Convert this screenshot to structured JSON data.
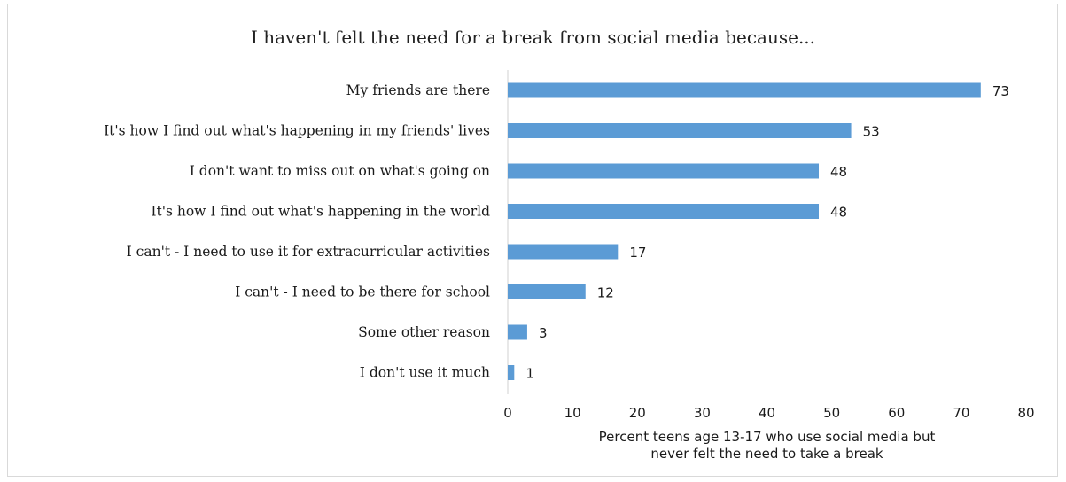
{
  "chart_data": {
    "type": "bar",
    "orientation": "horizontal",
    "title": "I haven't felt the need for a break from social media because...",
    "categories": [
      "My friends are there",
      "It's how I find out what's happening in my friends' lives",
      "I don't want to miss out on what's going on",
      "It's how I find out what's happening in the world",
      "I can't - I need to use it for extracurricular activities",
      "I can't - I need to be there for school",
      "Some other reason",
      "I don't use it much"
    ],
    "values": [
      73,
      53,
      48,
      48,
      17,
      12,
      3,
      1
    ],
    "xlabel_lines": [
      "Percent teens age 13-17 who use social media but",
      "never felt the need to take a break"
    ],
    "xlim": [
      0,
      80
    ],
    "xticks": [
      0,
      10,
      20,
      30,
      40,
      50,
      60,
      70,
      80
    ],
    "bar_color": "#5b9bd5",
    "grid": false,
    "legend": "none"
  }
}
